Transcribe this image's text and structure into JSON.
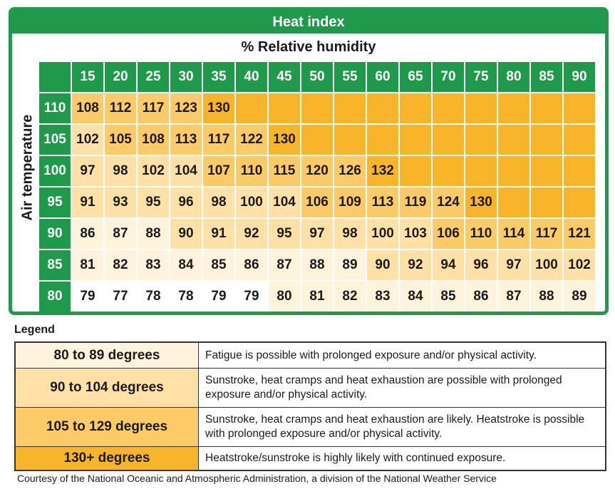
{
  "chart_data": {
    "type": "table",
    "title": "Heat index",
    "xlabel": "% Relative humidity",
    "ylabel": "Air temperature",
    "humidity": [
      15,
      20,
      25,
      30,
      35,
      40,
      45,
      50,
      55,
      60,
      65,
      70,
      75,
      80,
      85,
      90
    ],
    "rows": [
      {
        "temp": 110,
        "values": [
          108,
          112,
          117,
          123,
          130,
          null,
          null,
          null,
          null,
          null,
          null,
          null,
          null,
          null,
          null,
          null
        ]
      },
      {
        "temp": 105,
        "values": [
          102,
          105,
          108,
          113,
          117,
          122,
          130,
          null,
          null,
          null,
          null,
          null,
          null,
          null,
          null,
          null
        ]
      },
      {
        "temp": 100,
        "values": [
          97,
          98,
          102,
          104,
          107,
          110,
          115,
          120,
          126,
          132,
          null,
          null,
          null,
          null,
          null,
          null
        ]
      },
      {
        "temp": 95,
        "values": [
          91,
          93,
          95,
          96,
          98,
          100,
          104,
          106,
          109,
          113,
          119,
          124,
          130,
          null,
          null,
          null
        ]
      },
      {
        "temp": 90,
        "values": [
          86,
          87,
          88,
          90,
          91,
          92,
          95,
          97,
          98,
          100,
          103,
          106,
          110,
          114,
          117,
          121
        ]
      },
      {
        "temp": 85,
        "values": [
          81,
          82,
          83,
          84,
          85,
          86,
          87,
          88,
          89,
          90,
          92,
          94,
          96,
          97,
          100,
          102
        ]
      },
      {
        "temp": 80,
        "values": [
          79,
          77,
          78,
          78,
          79,
          79,
          80,
          81,
          82,
          83,
          84,
          85,
          86,
          87,
          88,
          89
        ]
      }
    ],
    "colors": {
      "header": "#1f9a4a",
      "below_80": "#ffffff",
      "80_89": "#fff3dc",
      "90_104": "#ffe1a8",
      "105_129": "#fccb68",
      "130_plus": "#f9b52a"
    }
  },
  "legend": {
    "title": "Legend",
    "items": [
      {
        "range": "80 to 89 degrees",
        "description": "Fatigue is possible with prolonged exposure and/or physical activity.",
        "color": "#fff3dc"
      },
      {
        "range": "90 to 104 degrees",
        "description": "Sunstroke, heat cramps and heat exhaustion are possible with prolonged exposure and/or physical activity.",
        "color": "#ffe1a8"
      },
      {
        "range": "105 to 129 degrees",
        "description": "Sunstroke, heat cramps and heat exhaustion are likely. Heatstroke is possible with prolonged exposure and/or physical activity.",
        "color": "#fccb68"
      },
      {
        "range": "130+ degrees",
        "description": "Heatstroke/sunstroke is highly likely with continued exposure.",
        "color": "#f9b52a"
      }
    ]
  },
  "credit": "Courtesy of the National Oceanic and Atmospheric Administration, a division of the National Weather Service"
}
